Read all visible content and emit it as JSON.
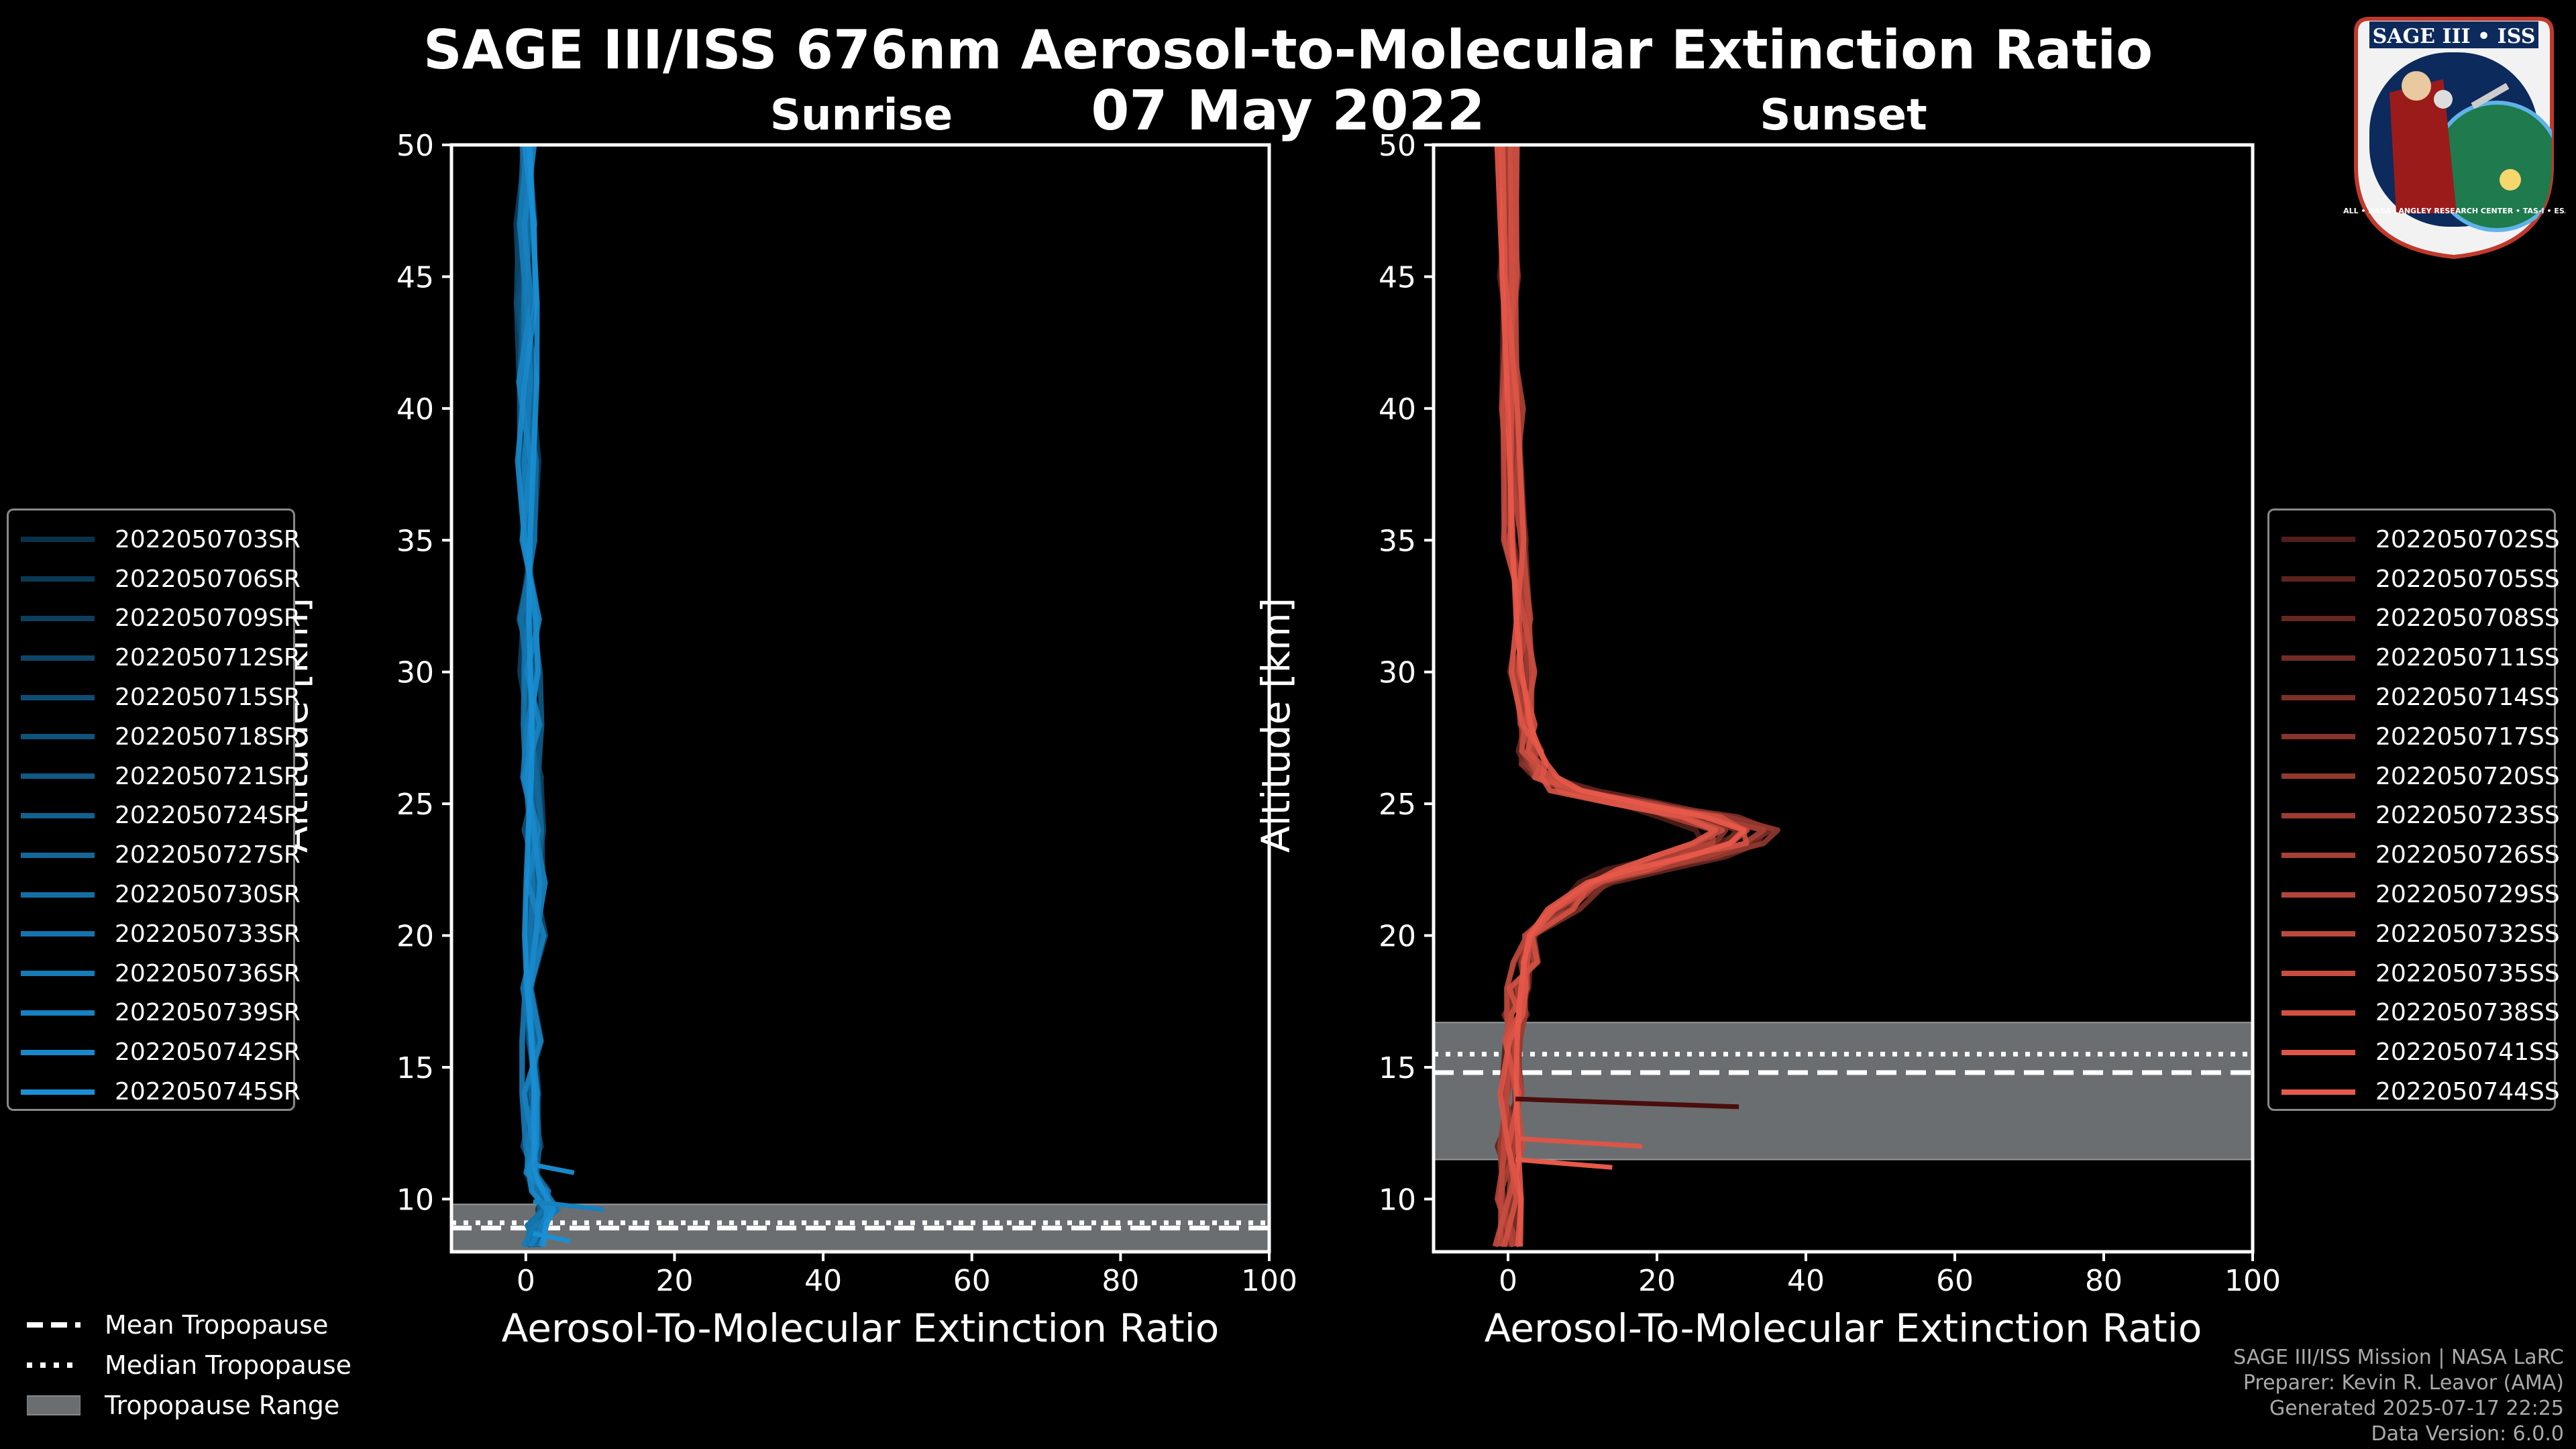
{
  "title": "SAGE III/ISS 676nm Aerosol-to-Molecular Extinction Ratio",
  "date": "07 May 2022",
  "logo": {
    "text": "SAGE III • ISS",
    "ring": "BALL • NASA LANGLEY RESEARCH CENTER • TAS-I • ESA"
  },
  "colors": {
    "sunrise": "#1a8fd4",
    "sunset": "#e8594a",
    "tropopause_band": "#6b6e70"
  },
  "chart_data": [
    {
      "type": "line",
      "title": "Sunrise",
      "xlabel": "Aerosol-To-Molecular Extinction Ratio",
      "ylabel": "Altitude [km]",
      "xlim": [
        -10,
        100
      ],
      "ylim": [
        8,
        50
      ],
      "xticks": [
        "0",
        "20",
        "40",
        "60",
        "80",
        "100"
      ],
      "yticks": [
        "10",
        "15",
        "20",
        "25",
        "30",
        "35",
        "40",
        "45",
        "50"
      ],
      "tropopause": {
        "mean": 8.9,
        "median": 9.1,
        "range": [
          8.0,
          9.8
        ]
      },
      "legend": [
        "2022050703SR",
        "2022050706SR",
        "2022050709SR",
        "2022050712SR",
        "2022050715SR",
        "2022050718SR",
        "2022050721SR",
        "2022050724SR",
        "2022050727SR",
        "2022050730SR",
        "2022050733SR",
        "2022050736SR",
        "2022050739SR",
        "2022050742SR",
        "2022050745SR"
      ],
      "profile": {
        "altitude": [
          8.2,
          9.0,
          9.6,
          10.3,
          11,
          12,
          14,
          16,
          18,
          20,
          22,
          24,
          26,
          28,
          30,
          32,
          35,
          38,
          41,
          44,
          47,
          50
        ],
        "ratio": [
          1.0,
          1.5,
          3.0,
          2.0,
          1.0,
          0.8,
          0.8,
          0.9,
          1.0,
          1.2,
          1.4,
          1.2,
          1.0,
          0.8,
          0.6,
          0.5,
          0.4,
          0.3,
          0.2,
          0.1,
          0.0,
          0.2
        ]
      },
      "spikes": [
        {
          "altitude": 9.6,
          "ratio": 10.5
        },
        {
          "altitude": 11.0,
          "ratio": 6.5
        },
        {
          "altitude": 8.4,
          "ratio": 6.0
        }
      ]
    },
    {
      "type": "line",
      "title": "Sunset",
      "xlabel": "Aerosol-To-Molecular Extinction Ratio",
      "ylabel": "Altitude [km]",
      "xlim": [
        -10,
        100
      ],
      "ylim": [
        8,
        50
      ],
      "xticks": [
        "0",
        "20",
        "40",
        "60",
        "80",
        "100"
      ],
      "yticks": [
        "10",
        "15",
        "20",
        "25",
        "30",
        "35",
        "40",
        "45",
        "50"
      ],
      "tropopause": {
        "mean": 14.8,
        "median": 15.5,
        "range": [
          11.5,
          16.7
        ]
      },
      "legend": [
        "2022050702SS",
        "2022050705SS",
        "2022050708SS",
        "2022050711SS",
        "2022050714SS",
        "2022050717SS",
        "2022050720SS",
        "2022050723SS",
        "2022050726SS",
        "2022050729SS",
        "2022050732SS",
        "2022050735SS",
        "2022050738SS",
        "2022050741SS",
        "2022050744SS"
      ],
      "profile": {
        "altitude": [
          8.2,
          10,
          12,
          14,
          16,
          17,
          18,
          19,
          20,
          21,
          22,
          22.5,
          23,
          23.5,
          24,
          24.5,
          25,
          25.5,
          26,
          26.5,
          27,
          28,
          30,
          32,
          35,
          40,
          45,
          50
        ],
        "ratio": [
          0.0,
          0.2,
          0.3,
          0.5,
          0.8,
          1.0,
          1.5,
          2.5,
          4.0,
          8.0,
          14.0,
          20.0,
          28.0,
          34.0,
          36.0,
          30.0,
          20.0,
          10.0,
          5.0,
          3.5,
          3.0,
          2.5,
          2.0,
          1.5,
          1.0,
          0.5,
          0.2,
          0.0
        ]
      },
      "spikes": [
        {
          "altitude": 13.5,
          "ratio": 31.0
        },
        {
          "altitude": 12.0,
          "ratio": 18.0
        },
        {
          "altitude": 11.2,
          "ratio": 14.0
        }
      ]
    }
  ],
  "bottom_legend": {
    "mean": "Mean Tropopause",
    "median": "Median Tropopause",
    "range": "Tropopause Range"
  },
  "footer": [
    "SAGE III/ISS Mission | NASA LaRC",
    "Preparer: Kevin R. Leavor (AMA)",
    "Generated 2025-07-17 22:25",
    "Data Version: 6.0.0"
  ]
}
